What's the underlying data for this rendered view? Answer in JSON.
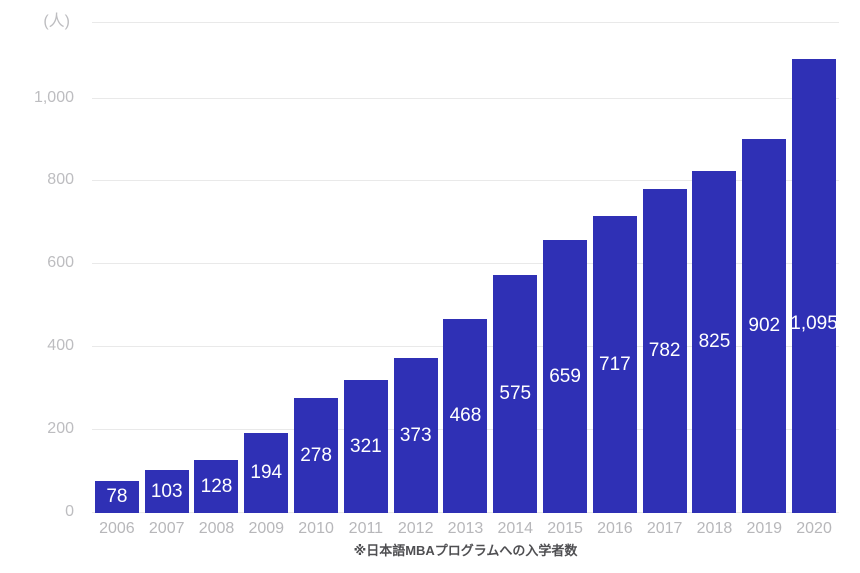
{
  "chart_data": {
    "type": "bar",
    "title": "",
    "unit_label": "(人)",
    "caption": "※日本語MBAプログラムへの入学者数",
    "categories": [
      "2006",
      "2007",
      "2008",
      "2009",
      "2010",
      "2011",
      "2012",
      "2013",
      "2014",
      "2015",
      "2016",
      "2017",
      "2018",
      "2019",
      "2020"
    ],
    "values": [
      78,
      103,
      128,
      194,
      278,
      321,
      373,
      468,
      575,
      659,
      717,
      782,
      825,
      902,
      1095
    ],
    "value_labels": [
      "78",
      "103",
      "128",
      "194",
      "278",
      "321",
      "373",
      "468",
      "575",
      "659",
      "717",
      "782",
      "825",
      "902",
      "1,095"
    ],
    "xlabel": "",
    "ylabel": "(人)",
    "y_ticks": [
      {
        "value": 0,
        "label": "0"
      },
      {
        "value": 200,
        "label": "200"
      },
      {
        "value": 400,
        "label": "400"
      },
      {
        "value": 600,
        "label": "600"
      },
      {
        "value": 800,
        "label": "800"
      },
      {
        "value": 1000,
        "label": "1,000"
      }
    ],
    "ylim": [
      0,
      1180
    ],
    "grid": true,
    "legend_position": "none",
    "colors": {
      "bar": "#2f30b5",
      "grid": "#e9e9e9",
      "tick_label": "#bdbdc0",
      "value_label": "#ffffff",
      "caption": "#4f4f52",
      "background": "#ffffff"
    }
  }
}
